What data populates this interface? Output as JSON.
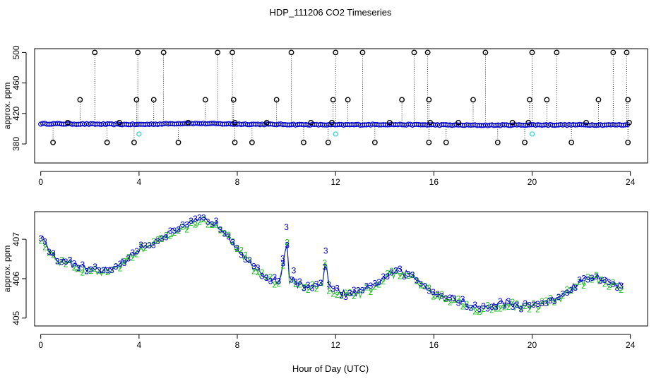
{
  "figure": {
    "title": "HDP_111206  CO2 Timeseries",
    "xlabel": "Hour of Day (UTC)"
  },
  "colors": {
    "black": "#000000",
    "blue": "#0000cc",
    "green": "#22bb22",
    "cyan": "#33cccc"
  },
  "chart_data": [
    {
      "type": "scatter",
      "panel": "top",
      "ylabel": "approx. ppm",
      "xlim": [
        -0.25,
        24.7
      ],
      "ylim": [
        355,
        505
      ],
      "xticks": [
        0,
        4,
        8,
        12,
        16,
        20,
        24
      ],
      "yticks": [
        380,
        420,
        460,
        500
      ],
      "grid": false,
      "baseline": [
        {
          "x": 0,
          "y": 406.5
        },
        {
          "x": 2,
          "y": 406
        },
        {
          "x": 4,
          "y": 405.5
        },
        {
          "x": 6,
          "y": 407
        },
        {
          "x": 8,
          "y": 406
        },
        {
          "x": 10,
          "y": 405.5
        },
        {
          "x": 12,
          "y": 405
        },
        {
          "x": 14,
          "y": 405.5
        },
        {
          "x": 16,
          "y": 405
        },
        {
          "x": 18,
          "y": 404.5
        },
        {
          "x": 20,
          "y": 405
        },
        {
          "x": 22,
          "y": 405
        },
        {
          "x": 24,
          "y": 405
        }
      ],
      "spikes_high": [
        {
          "x": 1.1,
          "y": 408
        },
        {
          "x": 1.6,
          "y": 438
        },
        {
          "x": 2.2,
          "y": 500
        },
        {
          "x": 3.2,
          "y": 408
        },
        {
          "x": 3.9,
          "y": 438
        },
        {
          "x": 3.95,
          "y": 500
        },
        {
          "x": 4.6,
          "y": 438
        },
        {
          "x": 5.0,
          "y": 500
        },
        {
          "x": 6.0,
          "y": 408
        },
        {
          "x": 6.7,
          "y": 438
        },
        {
          "x": 7.2,
          "y": 500
        },
        {
          "x": 7.8,
          "y": 500
        },
        {
          "x": 7.85,
          "y": 438
        },
        {
          "x": 7.9,
          "y": 408
        },
        {
          "x": 9.2,
          "y": 408
        },
        {
          "x": 9.6,
          "y": 438
        },
        {
          "x": 10.2,
          "y": 500
        },
        {
          "x": 11.0,
          "y": 408
        },
        {
          "x": 11.85,
          "y": 408
        },
        {
          "x": 11.9,
          "y": 438
        },
        {
          "x": 12.0,
          "y": 500
        },
        {
          "x": 12.5,
          "y": 438
        },
        {
          "x": 13.1,
          "y": 500
        },
        {
          "x": 14.2,
          "y": 408
        },
        {
          "x": 14.7,
          "y": 438
        },
        {
          "x": 15.2,
          "y": 500
        },
        {
          "x": 15.75,
          "y": 500
        },
        {
          "x": 15.8,
          "y": 438
        },
        {
          "x": 15.85,
          "y": 408
        },
        {
          "x": 17.0,
          "y": 408
        },
        {
          "x": 17.6,
          "y": 438
        },
        {
          "x": 18.1,
          "y": 500
        },
        {
          "x": 19.2,
          "y": 408
        },
        {
          "x": 19.85,
          "y": 408
        },
        {
          "x": 19.9,
          "y": 438
        },
        {
          "x": 20.0,
          "y": 500
        },
        {
          "x": 20.6,
          "y": 438
        },
        {
          "x": 21.0,
          "y": 500
        },
        {
          "x": 22.2,
          "y": 408
        },
        {
          "x": 22.7,
          "y": 438
        },
        {
          "x": 23.3,
          "y": 500
        },
        {
          "x": 23.85,
          "y": 500
        },
        {
          "x": 23.9,
          "y": 438
        },
        {
          "x": 23.95,
          "y": 408
        }
      ],
      "spikes_low": [
        {
          "x": 0.5,
          "y": 382
        },
        {
          "x": 2.7,
          "y": 382
        },
        {
          "x": 3.8,
          "y": 382
        },
        {
          "x": 5.6,
          "y": 382
        },
        {
          "x": 7.9,
          "y": 382
        },
        {
          "x": 8.6,
          "y": 382
        },
        {
          "x": 10.7,
          "y": 382
        },
        {
          "x": 11.7,
          "y": 382
        },
        {
          "x": 13.6,
          "y": 382
        },
        {
          "x": 15.8,
          "y": 382
        },
        {
          "x": 16.5,
          "y": 382
        },
        {
          "x": 18.6,
          "y": 382
        },
        {
          "x": 19.7,
          "y": 382
        },
        {
          "x": 21.6,
          "y": 382
        },
        {
          "x": 23.9,
          "y": 382
        }
      ],
      "cyan_points": [
        {
          "x": 4.0,
          "y": 393
        },
        {
          "x": 12.0,
          "y": 393
        },
        {
          "x": 20.0,
          "y": 393
        }
      ]
    },
    {
      "type": "line",
      "panel": "bottom",
      "ylabel": "approx. ppm",
      "xlim": [
        -0.25,
        24.7
      ],
      "ylim": [
        404.8,
        407.7
      ],
      "xticks": [
        0,
        4,
        8,
        12,
        16,
        20,
        24
      ],
      "yticks": [
        405.0,
        406.0,
        407.0
      ],
      "grid": false,
      "series": [
        {
          "name": "3",
          "color": "blue"
        },
        {
          "name": "2",
          "color": "green"
        }
      ],
      "trend": [
        {
          "x": 0,
          "y": 407.1
        },
        {
          "x": 0.3,
          "y": 406.8
        },
        {
          "x": 0.6,
          "y": 406.5
        },
        {
          "x": 1.0,
          "y": 406.45
        },
        {
          "x": 1.5,
          "y": 406.3
        },
        {
          "x": 2.0,
          "y": 406.25
        },
        {
          "x": 2.5,
          "y": 406.2
        },
        {
          "x": 3.0,
          "y": 406.3
        },
        {
          "x": 3.5,
          "y": 406.5
        },
        {
          "x": 4.0,
          "y": 406.75
        },
        {
          "x": 4.5,
          "y": 406.9
        },
        {
          "x": 5.0,
          "y": 407.1
        },
        {
          "x": 5.5,
          "y": 407.25
        },
        {
          "x": 6.0,
          "y": 407.35
        },
        {
          "x": 6.5,
          "y": 407.5
        },
        {
          "x": 7.0,
          "y": 407.45
        },
        {
          "x": 7.5,
          "y": 407.2
        },
        {
          "x": 8.0,
          "y": 406.8
        },
        {
          "x": 8.5,
          "y": 406.4
        },
        {
          "x": 9.0,
          "y": 406.1
        },
        {
          "x": 9.5,
          "y": 405.95
        },
        {
          "x": 10.0,
          "y": 405.95
        },
        {
          "x": 10.5,
          "y": 405.85
        },
        {
          "x": 11.0,
          "y": 405.8
        },
        {
          "x": 11.5,
          "y": 405.85
        },
        {
          "x": 12.0,
          "y": 405.7
        },
        {
          "x": 12.5,
          "y": 405.6
        },
        {
          "x": 13.0,
          "y": 405.65
        },
        {
          "x": 13.5,
          "y": 405.8
        },
        {
          "x": 14.0,
          "y": 406.05
        },
        {
          "x": 14.5,
          "y": 406.2
        },
        {
          "x": 15.0,
          "y": 406.1
        },
        {
          "x": 15.5,
          "y": 405.9
        },
        {
          "x": 16.0,
          "y": 405.65
        },
        {
          "x": 16.5,
          "y": 405.55
        },
        {
          "x": 17.0,
          "y": 405.45
        },
        {
          "x": 17.5,
          "y": 405.3
        },
        {
          "x": 18.0,
          "y": 405.25
        },
        {
          "x": 18.5,
          "y": 405.35
        },
        {
          "x": 19.0,
          "y": 405.4
        },
        {
          "x": 19.5,
          "y": 405.3
        },
        {
          "x": 20.0,
          "y": 405.35
        },
        {
          "x": 20.5,
          "y": 405.4
        },
        {
          "x": 21.0,
          "y": 405.5
        },
        {
          "x": 21.5,
          "y": 405.7
        },
        {
          "x": 22.0,
          "y": 405.95
        },
        {
          "x": 22.5,
          "y": 406.05
        },
        {
          "x": 23.0,
          "y": 405.95
        },
        {
          "x": 23.5,
          "y": 405.85
        },
        {
          "x": 23.8,
          "y": 405.8
        }
      ],
      "peaks": [
        {
          "x": 9.85,
          "y": 406.4
        },
        {
          "x": 10.0,
          "y": 407.2
        },
        {
          "x": 10.3,
          "y": 406.1
        },
        {
          "x": 11.6,
          "y": 406.6
        }
      ]
    }
  ]
}
